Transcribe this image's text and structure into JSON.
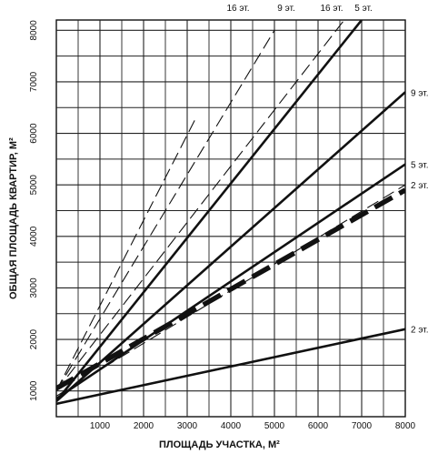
{
  "chart_data": {
    "type": "line",
    "xlabel": "ПЛОЩАДЬ УЧАСТКА, М²",
    "ylabel": "ОБЩАЯ ПЛОЩАДЬ КВАРТИР, М²",
    "xlim": [
      0,
      8000
    ],
    "ylim": [
      500,
      8200
    ],
    "x_ticks": [
      "1000",
      "2000",
      "3000",
      "4000",
      "5000",
      "6000",
      "7000",
      "8000"
    ],
    "y_ticks": [
      "1000",
      "2000",
      "3000",
      "4000",
      "5000",
      "6000",
      "7000",
      "8000"
    ],
    "grid": true,
    "series": [
      {
        "name": "16 эт.",
        "style": "dashed-thin",
        "label_pos": "top",
        "points": [
          [
            0,
            1000
          ],
          [
            3200,
            6300
          ]
        ]
      },
      {
        "name": "9 эт.",
        "style": "dashed-thin",
        "label_pos": "top",
        "points": [
          [
            0,
            1000
          ],
          [
            5000,
            8000
          ]
        ]
      },
      {
        "name": "5 эт.",
        "style": "solid",
        "label_pos": "top",
        "points": [
          [
            0,
            800
          ],
          [
            7000,
            8200
          ]
        ]
      },
      {
        "name": "16 эт.",
        "style": "dashed-thin",
        "label_pos": "top",
        "points": [
          [
            0,
            1000
          ],
          [
            6600,
            8200
          ]
        ]
      },
      {
        "name": "9 эт.",
        "style": "solid",
        "label_pos": "right",
        "points": [
          [
            0,
            800
          ],
          [
            8000,
            6800
          ]
        ]
      },
      {
        "name": "5 эт.",
        "style": "solid",
        "label_pos": "right",
        "points": [
          [
            0,
            850
          ],
          [
            8000,
            5400
          ]
        ]
      },
      {
        "name": "2 эт.",
        "style": "dashed-thin",
        "label_pos": "right",
        "points": [
          [
            0,
            900
          ],
          [
            8000,
            5000
          ]
        ]
      },
      {
        "name": "",
        "style": "dashed-thick",
        "label_pos": "none",
        "points": [
          [
            0,
            1050
          ],
          [
            8000,
            4900
          ]
        ]
      },
      {
        "name": "2 эт.",
        "style": "solid",
        "label_pos": "right",
        "points": [
          [
            0,
            750
          ],
          [
            8000,
            2200
          ]
        ]
      }
    ]
  }
}
